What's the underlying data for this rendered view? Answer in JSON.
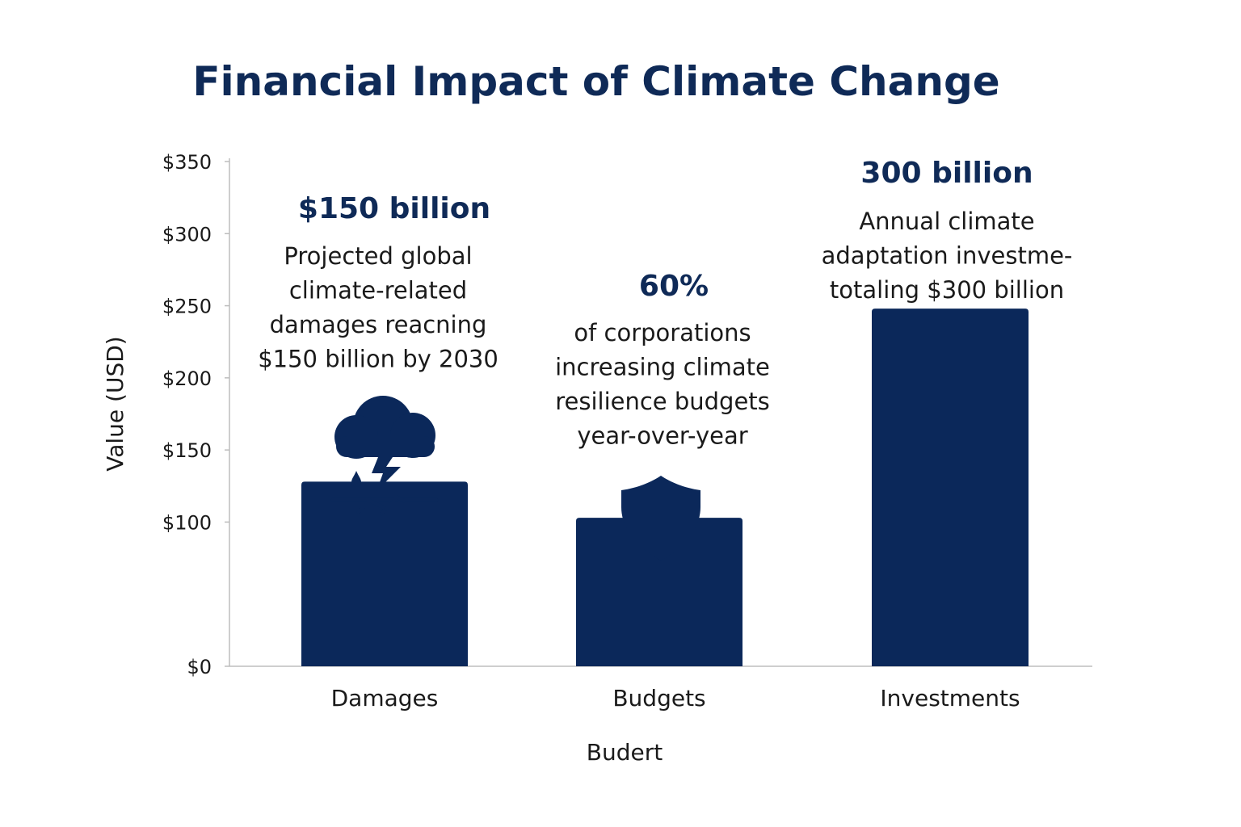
{
  "chart_data": {
    "type": "bar",
    "title": "Financial Impact of Climate Change",
    "xlabel": "Budert",
    "ylabel": "Value (USD)",
    "ylim": [
      0,
      350
    ],
    "y_ticks": [
      "$0",
      "$100",
      "$150",
      "$200",
      "$250",
      "$300",
      "$350"
    ],
    "y_tick_values": [
      0,
      100,
      150,
      200,
      250,
      300,
      350
    ],
    "categories": [
      "Damages",
      "Budgets",
      "Investments"
    ],
    "values": [
      128,
      103,
      248
    ],
    "grid": false,
    "legend": "none",
    "annotations": [
      {
        "headline": "$150 billion",
        "lines": [
          "Projected global",
          "climate-related",
          "damages reacning",
          "$150 billion by 2030"
        ],
        "icon": "storm-cloud-icon"
      },
      {
        "headline": "60%",
        "lines": [
          "of corporations",
          "increasing climate",
          "resilience budgets",
          "year-over-year"
        ],
        "icon": "shield-icon"
      },
      {
        "headline": "300 billion",
        "lines": [
          "Annual climate",
          "adaptation investme-",
          "totaling $300 billion"
        ],
        "icon": ""
      }
    ]
  },
  "colors": {
    "bar": "#0b285a",
    "title": "#0f2a57",
    "text": "#1a1a1a",
    "axis": "#bdbdbd"
  }
}
